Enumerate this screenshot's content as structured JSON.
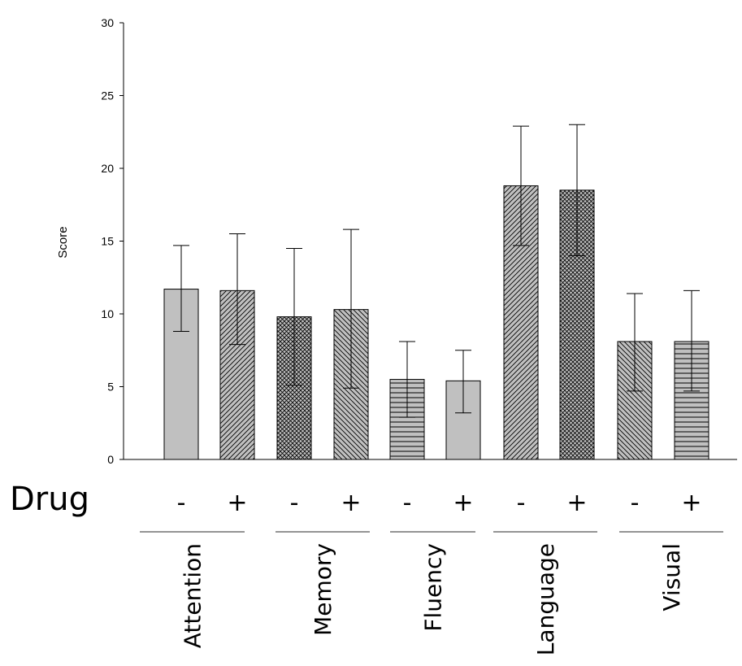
{
  "chart_data": {
    "type": "bar",
    "ylabel": "Score",
    "xlabel": "",
    "ylim": [
      0,
      30
    ],
    "yticks": [
      0,
      5,
      10,
      15,
      20,
      25,
      30
    ],
    "grid": false,
    "drug_label": "Drug",
    "bars": [
      {
        "group": "Attention",
        "drug": "-",
        "value": 11.7,
        "err_low": 8.8,
        "err_high": 14.7,
        "pattern": "solid"
      },
      {
        "group": "Attention",
        "drug": "+",
        "value": 11.6,
        "err_low": 7.9,
        "err_high": 15.5,
        "pattern": "diag-up"
      },
      {
        "group": "Memory",
        "drug": "-",
        "value": 9.8,
        "err_low": 5.1,
        "err_high": 14.5,
        "pattern": "crosshatch"
      },
      {
        "group": "Memory",
        "drug": "+",
        "value": 10.3,
        "err_low": 4.9,
        "err_high": 15.8,
        "pattern": "diag-down"
      },
      {
        "group": "Fluency",
        "drug": "-",
        "value": 5.5,
        "err_low": 2.9,
        "err_high": 8.1,
        "pattern": "horizontal"
      },
      {
        "group": "Fluency",
        "drug": "+",
        "value": 5.4,
        "err_low": 3.2,
        "err_high": 7.5,
        "pattern": "solid"
      },
      {
        "group": "Language",
        "drug": "-",
        "value": 18.8,
        "err_low": 14.7,
        "err_high": 22.9,
        "pattern": "diag-up"
      },
      {
        "group": "Language",
        "drug": "+",
        "value": 18.5,
        "err_low": 14.0,
        "err_high": 23.0,
        "pattern": "crosshatch"
      },
      {
        "group": "Visual",
        "drug": "-",
        "value": 8.1,
        "err_low": 4.7,
        "err_high": 11.4,
        "pattern": "diag-down"
      },
      {
        "group": "Visual",
        "drug": "+",
        "value": 8.1,
        "err_low": 4.7,
        "err_high": 11.6,
        "pattern": "horizontal"
      }
    ],
    "groups": [
      "Attention",
      "Memory",
      "Fluency",
      "Language",
      "Visual"
    ]
  },
  "colors": {
    "bar_fill": "#c0c0c0",
    "stroke": "#000000"
  }
}
